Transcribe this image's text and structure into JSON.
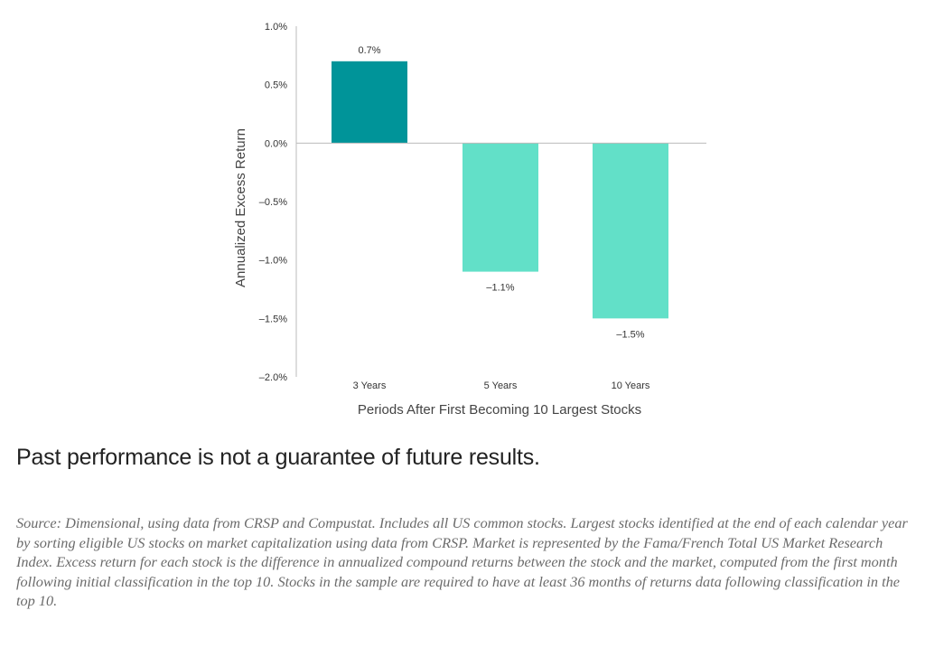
{
  "chart_data": {
    "type": "bar",
    "categories": [
      "3 Years",
      "5 Years",
      "10 Years"
    ],
    "values": [
      0.7,
      -1.1,
      -1.5
    ],
    "value_labels": [
      "0.7%",
      "–1.1%",
      "–1.5%"
    ],
    "ylabel": "Annualized Excess Return",
    "xlabel": "Periods After First Becoming 10 Largest Stocks",
    "ylim": [
      -2.0,
      1.0
    ],
    "yticks": [
      1.0,
      0.5,
      0.0,
      -0.5,
      -1.0,
      -1.5,
      -2.0
    ],
    "ytick_labels": [
      "1.0%",
      "0.5%",
      "0.0%",
      "–0.5%",
      "–1.0%",
      "–1.5%",
      "–2.0%"
    ],
    "grid": false,
    "colors": {
      "positive": "#009499",
      "negative": "#62E0C8",
      "axis": "#bbbbbb"
    }
  },
  "disclaimer": "Past performance is not a guarantee of future results.",
  "source_note": "Source: Dimensional, using data from CRSP and Compustat. Includes all US common stocks. Largest stocks identified at the end of each calendar year by sorting eligible US stocks on market capitalization using data from CRSP. Market is represented by the Fama/French Total US Market Research Index. Excess return for each stock is the difference in annualized compound returns between the stock and the market, computed from the first month following initial classification in the top 10. Stocks in the sample are required to have at least 36 months of returns data following classification in the top 10."
}
